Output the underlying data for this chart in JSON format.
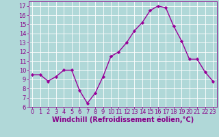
{
  "x": [
    0,
    1,
    2,
    3,
    4,
    5,
    6,
    7,
    8,
    9,
    10,
    11,
    12,
    13,
    14,
    15,
    16,
    17,
    18,
    19,
    20,
    21,
    22,
    23
  ],
  "y": [
    9.5,
    9.5,
    8.8,
    9.3,
    10.0,
    10.0,
    7.8,
    6.4,
    7.5,
    9.3,
    11.5,
    12.0,
    13.0,
    14.3,
    15.2,
    16.5,
    17.0,
    16.8,
    14.8,
    13.2,
    11.2,
    11.2,
    9.8,
    8.8
  ],
  "line_color": "#990099",
  "marker": "D",
  "marker_size": 2.2,
  "bg_color": "#b0d8d8",
  "grid_color": "#ffffff",
  "xlabel": "Windchill (Refroidissement éolien,°C)",
  "xlim": [
    -0.5,
    23.5
  ],
  "ylim": [
    6,
    17.5
  ],
  "yticks": [
    6,
    7,
    8,
    9,
    10,
    11,
    12,
    13,
    14,
    15,
    16,
    17
  ],
  "xticks": [
    0,
    1,
    2,
    3,
    4,
    5,
    6,
    7,
    8,
    9,
    10,
    11,
    12,
    13,
    14,
    15,
    16,
    17,
    18,
    19,
    20,
    21,
    22,
    23
  ],
  "tick_color": "#880088",
  "label_color": "#880088",
  "tick_fontsize": 6,
  "xlabel_fontsize": 7,
  "linewidth": 1.0
}
